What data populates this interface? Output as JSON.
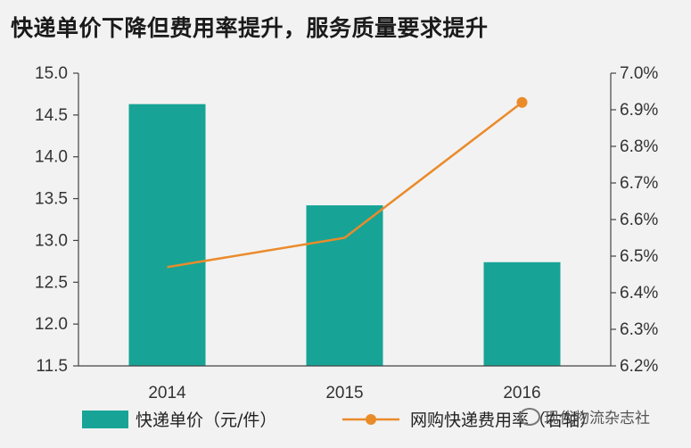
{
  "title": "快递单价下降但费用率提升，服务质量要求提升",
  "watermark": "现代物流杂志社",
  "colors": {
    "bar": "#17a497",
    "line": "#ea8b2a",
    "axis": "#444444",
    "background": "#f2f2f2"
  },
  "chart_data": {
    "type": "bar+line",
    "categories": [
      "2014",
      "2015",
      "2016"
    ],
    "series": [
      {
        "name": "快递单价（元/件）",
        "type": "bar",
        "axis": "left",
        "values": [
          14.63,
          13.42,
          12.74
        ]
      },
      {
        "name": "网购快递费用率（右轴）",
        "type": "line",
        "axis": "right",
        "values": [
          6.47,
          6.55,
          6.92
        ]
      }
    ],
    "y_left": {
      "ylim": [
        11.5,
        15.0
      ],
      "ticks": [
        "11.5",
        "12.0",
        "12.5",
        "13.0",
        "13.5",
        "14.0",
        "14.5",
        "15.0"
      ]
    },
    "y_right": {
      "ylim": [
        6.2,
        7.0
      ],
      "ticks": [
        "6.2%",
        "6.3%",
        "6.4%",
        "6.5%",
        "6.6%",
        "6.7%",
        "6.8%",
        "6.9%",
        "7.0%"
      ]
    },
    "grid": false,
    "legend": "bottom"
  }
}
